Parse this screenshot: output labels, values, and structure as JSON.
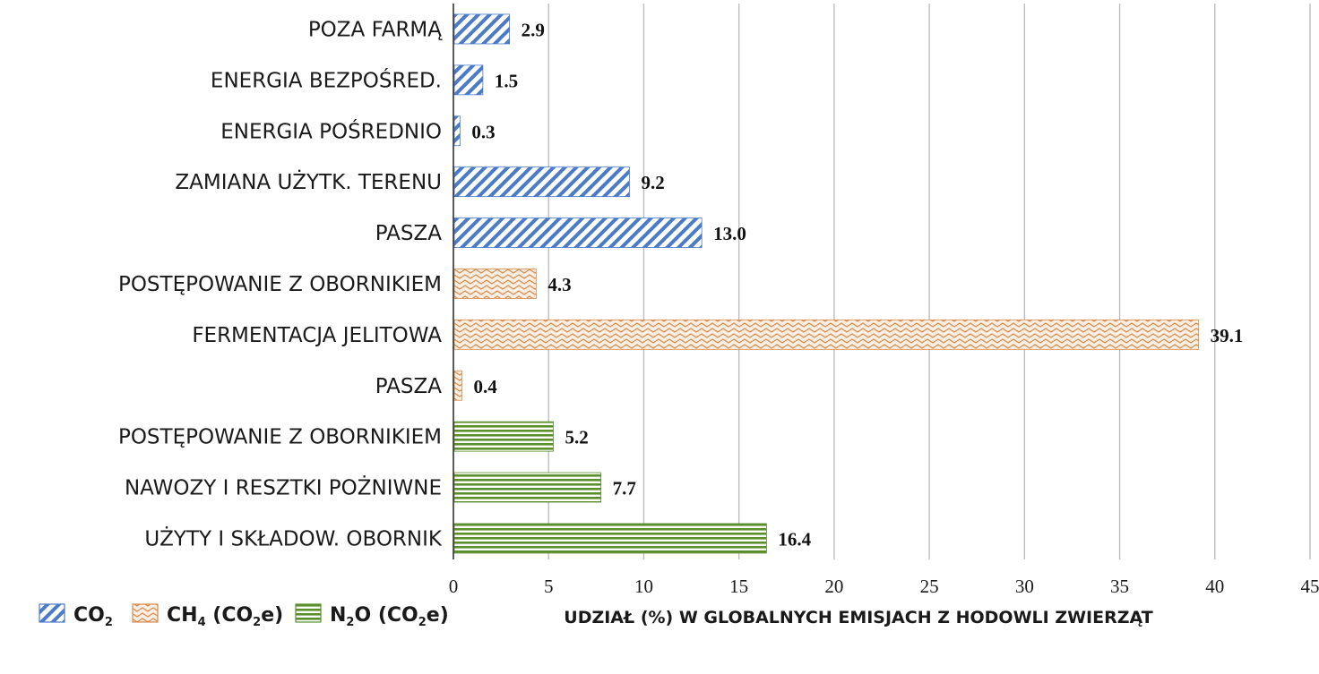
{
  "chart_data": {
    "type": "bar",
    "orientation": "horizontal",
    "title": "",
    "xlabel": "UDZIAŁ (%) W GLOBALNYCH EMISJACH Z HODOWLI ZWIERZĄT",
    "ylabel": "",
    "xlim": [
      0,
      45
    ],
    "xticks": [
      0,
      5,
      10,
      15,
      20,
      25,
      30,
      35,
      40,
      45
    ],
    "grid": true,
    "categories": [
      "POZA FARMĄ",
      "ENERGIA BEZPOŚRED.",
      "ENERGIA POŚREDNIO",
      "ZAMIANA UŻYTK. TERENU",
      "PASZA",
      "POSTĘPOWANIE Z OBORNIKIEM",
      "FERMENTACJA JELITOWA",
      "PASZA",
      "POSTĘPOWANIE Z OBORNIKIEM",
      "NAWOZY I RESZTKI POŻNIWNE",
      "UŻYTY I SKŁADOW. OBORNIK"
    ],
    "values": [
      2.9,
      1.5,
      0.3,
      9.2,
      13.0,
      4.3,
      39.1,
      0.4,
      5.2,
      7.7,
      16.4
    ],
    "value_labels": [
      "2.9",
      "1.5",
      "0.3",
      "9.2",
      "13.0",
      "4.3",
      "39.1",
      "0.4",
      "5.2",
      "7.7",
      "16.4"
    ],
    "series_of_bar": [
      "co2",
      "co2",
      "co2",
      "co2",
      "co2",
      "ch4",
      "ch4",
      "ch4",
      "n2o",
      "n2o",
      "n2o"
    ],
    "series": [
      {
        "key": "co2",
        "name": "CO2",
        "name_main": "CO",
        "name_sub": "2",
        "name_rest": "",
        "color": "#4a7ac8",
        "pattern": "diagonal-hatch"
      },
      {
        "key": "ch4",
        "name": "CH4 (CO2e)",
        "name_main": "CH",
        "name_sub": "4",
        "name_rest": " (CO",
        "name_sub2": "2",
        "name_tail": "e)",
        "color": "#d98a4a",
        "pattern": "wavy"
      },
      {
        "key": "n2o",
        "name": "N2O (CO2e)",
        "name_main": "N",
        "name_sub": "2",
        "name_rest": "O (CO",
        "name_sub2": "2",
        "name_tail": "e)",
        "color": "#5b8f2e",
        "pattern": "horizontal-lines"
      }
    ],
    "legend_position": "bottom-left"
  }
}
